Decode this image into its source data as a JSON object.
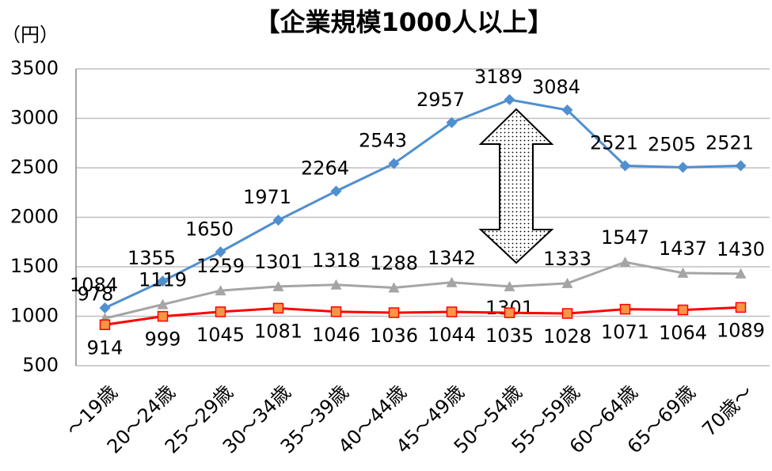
{
  "chart_data": {
    "type": "line",
    "title": "【企業規模1000人以上】",
    "y_label": "（円）",
    "categories": [
      "～19歳",
      "20～24歳",
      "25～29歳",
      "30～34歳",
      "35～39歳",
      "40～44歳",
      "45～49歳",
      "50～54歳",
      "55～59歳",
      "60～64歳",
      "65～69歳",
      "70歳～"
    ],
    "series": [
      {
        "color": "#4f8fd0",
        "marker": "diamond",
        "values": [
          1084,
          1355,
          1650,
          1971,
          2264,
          2543,
          2957,
          3189,
          3084,
          2521,
          2505,
          2521
        ]
      },
      {
        "color": "#a5a5a5",
        "marker": "triangle",
        "values": [
          978,
          1119,
          1259,
          1301,
          1318,
          1288,
          1342,
          1301,
          1333,
          1547,
          1437,
          1430
        ]
      },
      {
        "color": "#ff0000",
        "marker": "square",
        "values": [
          914,
          999,
          1045,
          1081,
          1046,
          1036,
          1044,
          1035,
          1028,
          1071,
          1064,
          1089
        ]
      }
    ],
    "ylim": [
      500,
      3500
    ],
    "yticks": [
      500,
      1000,
      1500,
      2000,
      2500,
      3000,
      3500
    ],
    "grid": true
  }
}
